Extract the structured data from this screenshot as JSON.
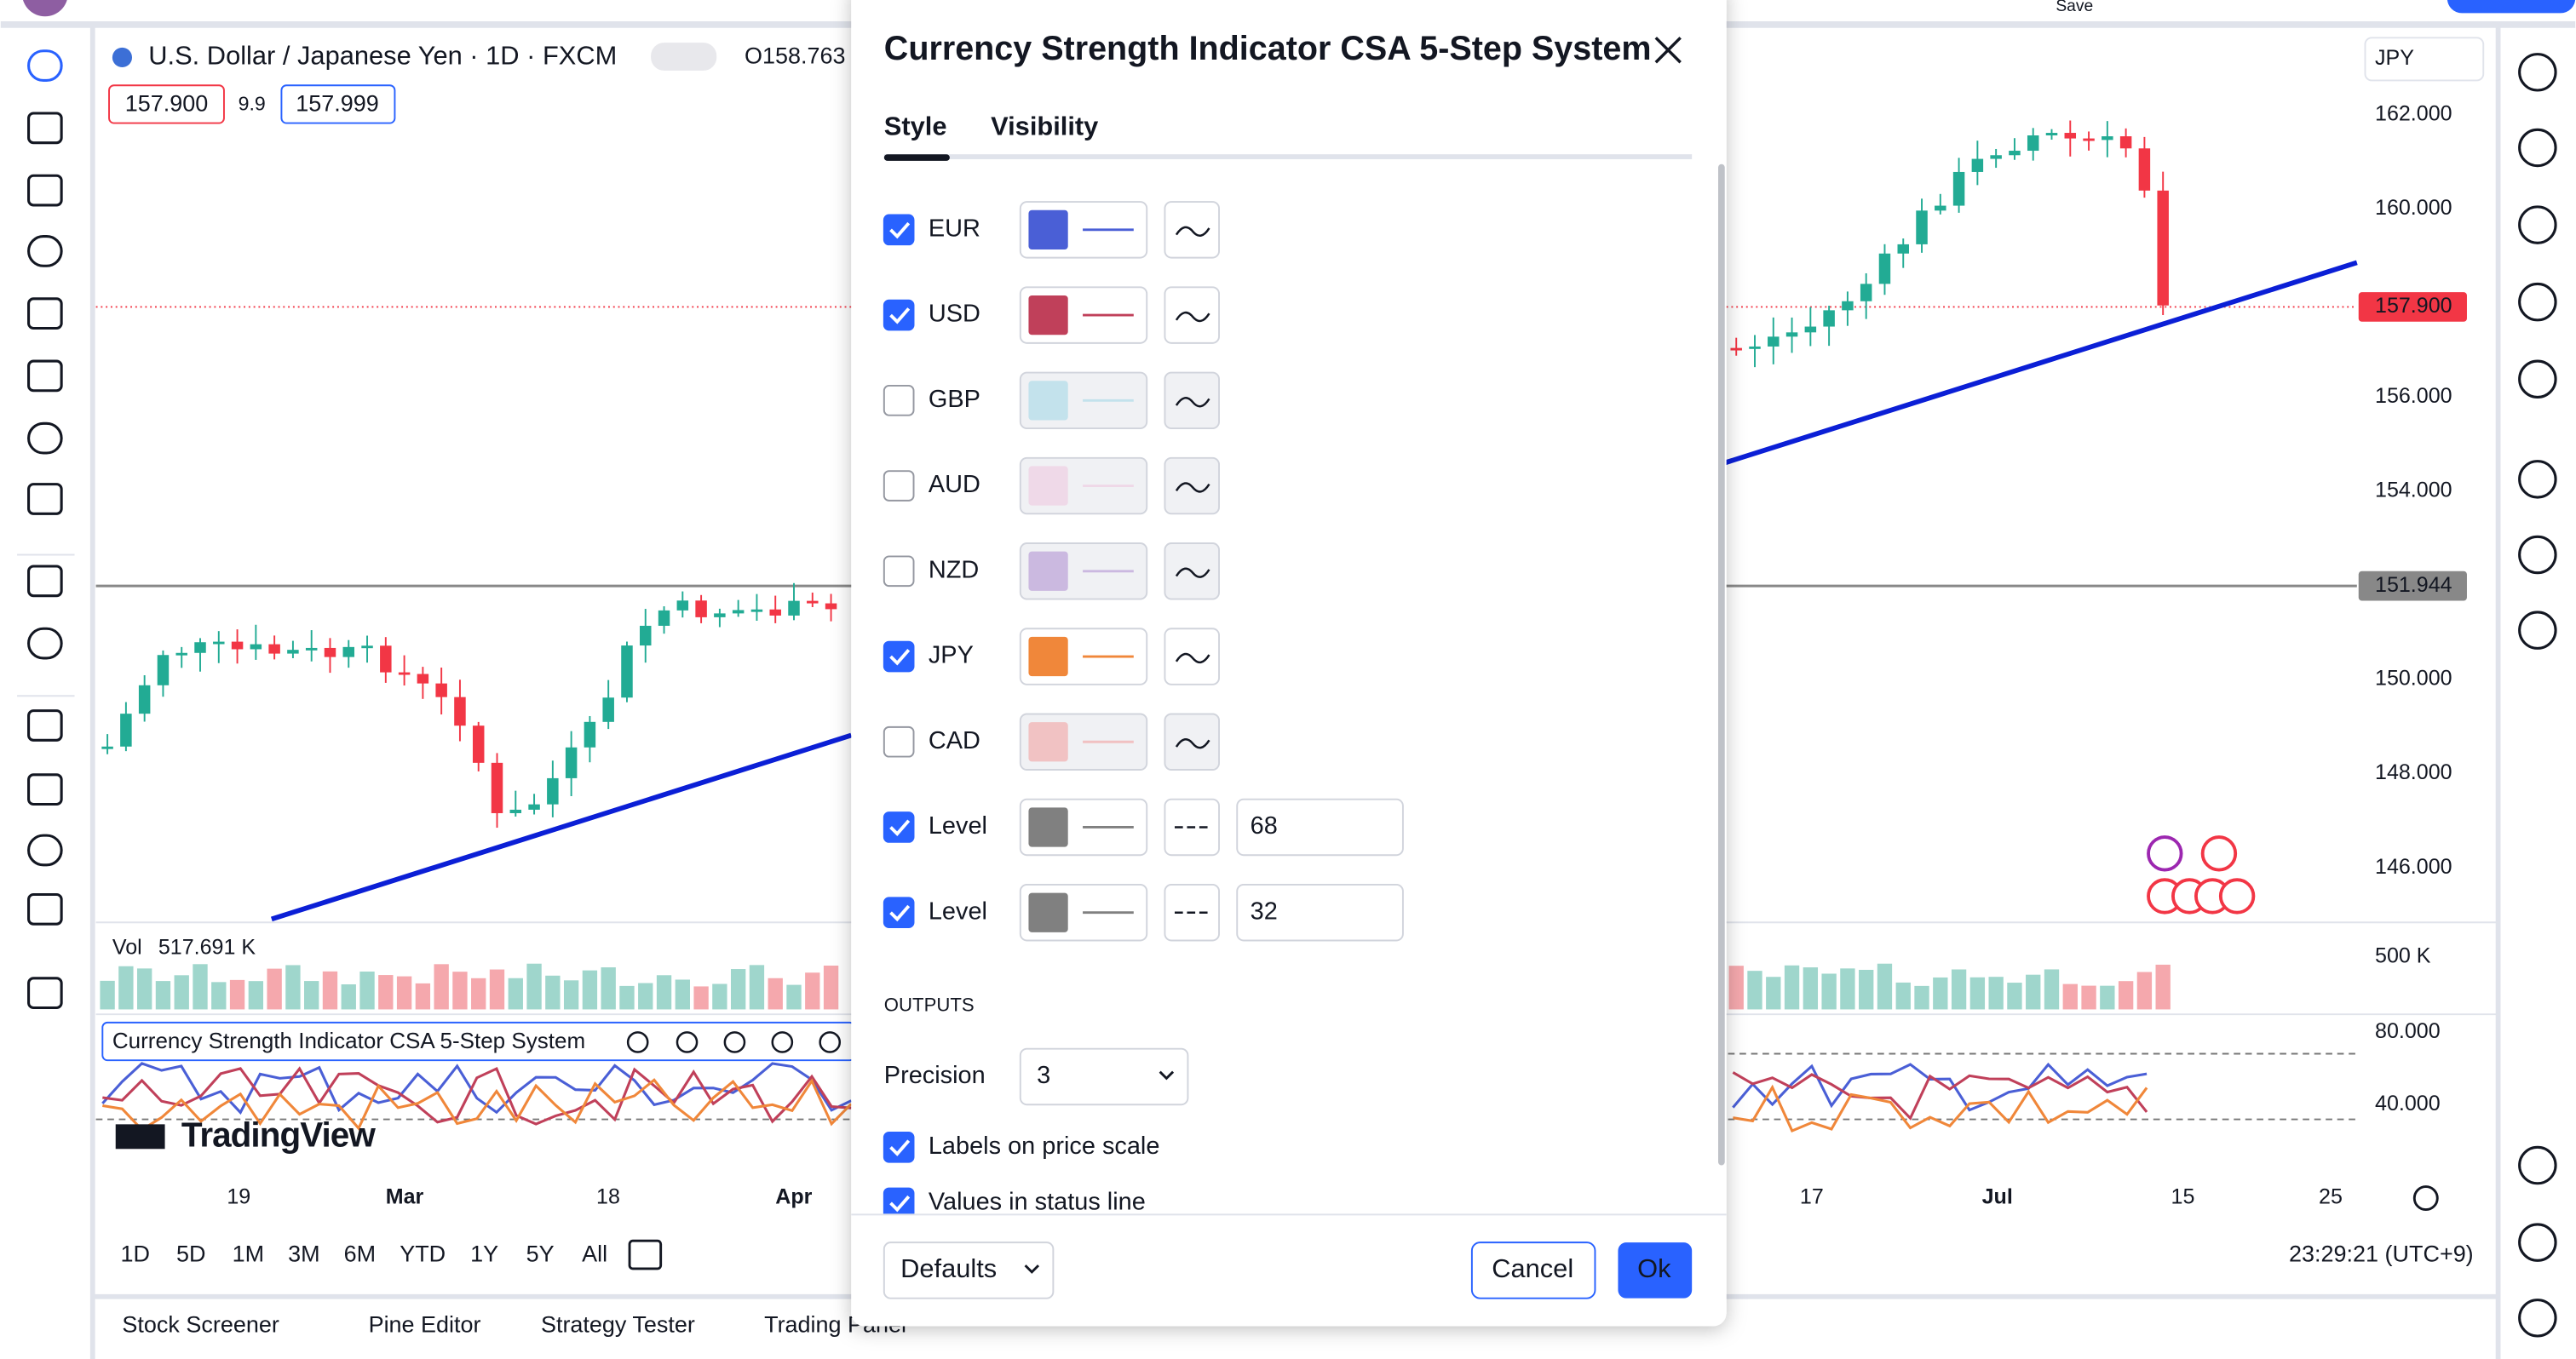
{
  "top_bar": {
    "save": "Save"
  },
  "chart": {
    "symbol": "U.S. Dollar / Japanese Yen · 1D · FXCM",
    "open": "O158.763",
    "bid": "157.900",
    "spread": "9.9",
    "ask": "157.999",
    "currency": "JPY",
    "price_labels": [
      "162.000",
      "160.000",
      "156.000",
      "154.000",
      "150.000",
      "148.000",
      "146.000"
    ],
    "current_price": "157.900",
    "line_price": "151.944",
    "volume_label": "Vol",
    "volume_value": "517.691 K",
    "volume_axis": "500 K",
    "indicator_name": "Currency Strength Indicator CSA 5-Step System",
    "indicator_axis": [
      "80.000",
      "40.000"
    ],
    "time_labels": [
      "19",
      "Mar",
      "18",
      "Apr",
      "17",
      "Jul",
      "15",
      "25"
    ],
    "logo": "TradingView",
    "timeframes": [
      "1D",
      "5D",
      "1M",
      "3M",
      "6M",
      "YTD",
      "1Y",
      "5Y",
      "All"
    ],
    "clock": "23:29:21 (UTC+9)"
  },
  "bottom_tabs": [
    "Stock Screener",
    "Pine Editor",
    "Strategy Tester",
    "Trading Panel"
  ],
  "dialog": {
    "title": "Currency Strength Indicator CSA 5-Step System",
    "tabs": [
      "Style",
      "Visibility"
    ],
    "rows": [
      {
        "label": "EUR",
        "checked": true,
        "color": "#4a5fd6"
      },
      {
        "label": "USD",
        "checked": true,
        "color": "#c0405a"
      },
      {
        "label": "GBP",
        "checked": false,
        "color": "#9fd6e6"
      },
      {
        "label": "AUD",
        "checked": false,
        "color": "#efc4de"
      },
      {
        "label": "NZD",
        "checked": false,
        "color": "#ad8bd0"
      },
      {
        "label": "JPY",
        "checked": true,
        "color": "#f0873a"
      },
      {
        "label": "CAD",
        "checked": false,
        "color": "#f29a9a"
      },
      {
        "label": "Level",
        "checked": true,
        "color": "#808080",
        "value": "68"
      },
      {
        "label": "Level",
        "checked": true,
        "color": "#808080",
        "value": "32"
      }
    ],
    "outputs_header": "OUTPUTS",
    "precision_label": "Precision",
    "precision_value": "3",
    "options": [
      {
        "label": "Labels on price scale",
        "checked": true
      },
      {
        "label": "Values in status line",
        "checked": true
      }
    ],
    "defaults": "Defaults",
    "cancel": "Cancel",
    "ok": "Ok"
  }
}
